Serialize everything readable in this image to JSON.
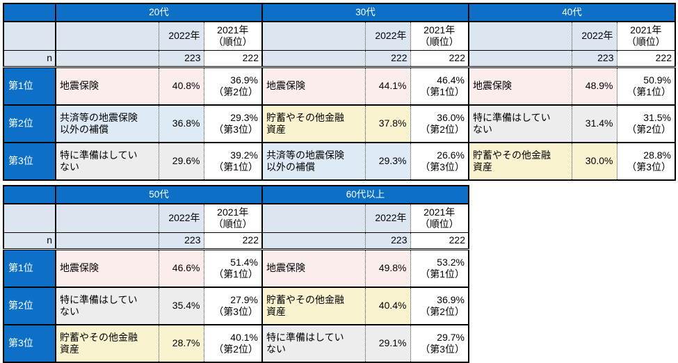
{
  "colors": {
    "header_blue": "#0d70c6",
    "subheader_light_blue": "#dce6f1",
    "row_pink": "#fbedec",
    "row_light_blue": "#deebf7",
    "row_gray": "#ededed",
    "row_yellow": "#faf3cf",
    "border": "#000000"
  },
  "chart_data": {
    "type": "table",
    "rank_labels": [
      "第1位",
      "第2位",
      "第3位"
    ],
    "n_label": "n",
    "col_2022": "2022年",
    "col_2021": "2021年\n（順位）",
    "groups": [
      {
        "age": "20代",
        "n_2022": "223",
        "n_2021": "222",
        "rows": [
          {
            "rank": "第1位",
            "item": "地震保険",
            "color": "pink",
            "pct_2022": "40.8%",
            "pct_2021": "36.9%\n（第2位）"
          },
          {
            "rank": "第2位",
            "item": "共済等の地震保険\n以外の補償",
            "color": "blue",
            "pct_2022": "36.8%",
            "pct_2021": "29.3%\n（第3位）"
          },
          {
            "rank": "第3位",
            "item": "特に準備はしてい\nない",
            "color": "gray",
            "pct_2022": "29.6%",
            "pct_2021": "39.2%\n（第1位）"
          }
        ]
      },
      {
        "age": "30代",
        "n_2022": "222",
        "n_2021": "222",
        "rows": [
          {
            "rank": "第1位",
            "item": "地震保険",
            "color": "pink",
            "pct_2022": "44.1%",
            "pct_2021": "46.4%\n（第1位）"
          },
          {
            "rank": "第2位",
            "item": "貯蓄やその他金融\n資産",
            "color": "yellow",
            "pct_2022": "37.8%",
            "pct_2021": "36.0%\n（第2位）"
          },
          {
            "rank": "第3位",
            "item": "共済等の地震保険\n以外の補償",
            "color": "blue",
            "pct_2022": "29.3%",
            "pct_2021": "26.6%\n（第3位）"
          }
        ]
      },
      {
        "age": "40代",
        "n_2022": "223",
        "n_2021": "222",
        "rows": [
          {
            "rank": "第1位",
            "item": "地震保険",
            "color": "pink",
            "pct_2022": "48.9%",
            "pct_2021": "50.9%\n（第1位）"
          },
          {
            "rank": "第2位",
            "item": "特に準備はしてい\nない",
            "color": "gray",
            "pct_2022": "31.4%",
            "pct_2021": "31.5%\n（第2位）"
          },
          {
            "rank": "第3位",
            "item": "貯蓄やその他金融\n資産",
            "color": "yellow",
            "pct_2022": "30.0%",
            "pct_2021": "28.8%\n（第3位）"
          }
        ]
      },
      {
        "age": "50代",
        "n_2022": "223",
        "n_2021": "222",
        "rows": [
          {
            "rank": "第1位",
            "item": "地震保険",
            "color": "pink",
            "pct_2022": "46.6%",
            "pct_2021": "51.4%\n（第1位）"
          },
          {
            "rank": "第2位",
            "item": "特に準備はしてい\nない",
            "color": "gray",
            "pct_2022": "35.4%",
            "pct_2021": "27.9%\n（第3位）"
          },
          {
            "rank": "第3位",
            "item": "貯蓄やその他金融\n資産",
            "color": "yellow",
            "pct_2022": "28.7%",
            "pct_2021": "40.1%\n（第2位）"
          }
        ]
      },
      {
        "age": "60代以上",
        "n_2022": "223",
        "n_2021": "222",
        "rows": [
          {
            "rank": "第1位",
            "item": "地震保険",
            "color": "pink",
            "pct_2022": "49.8%",
            "pct_2021": "53.2%\n（第1位）"
          },
          {
            "rank": "第2位",
            "item": "貯蓄やその他金融\n資産",
            "color": "yellow",
            "pct_2022": "40.4%",
            "pct_2021": "36.9%\n（第2位）"
          },
          {
            "rank": "第3位",
            "item": "特に準備はしてい\nない",
            "color": "gray",
            "pct_2022": "29.1%",
            "pct_2021": "29.7%\n（第3位）"
          }
        ]
      }
    ]
  }
}
